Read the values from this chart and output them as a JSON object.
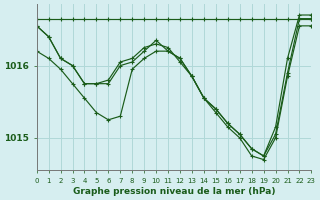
{
  "bg_color": "#d6eef0",
  "grid_color": "#b0d8d8",
  "line_color": "#1a5c1a",
  "xlabel": "Graphe pression niveau de la mer (hPa)",
  "ylim": [
    1014.55,
    1016.85
  ],
  "xlim": [
    0,
    23
  ],
  "yticks": [
    1015,
    1016
  ],
  "xticks": [
    0,
    1,
    2,
    3,
    4,
    5,
    6,
    7,
    8,
    9,
    10,
    11,
    12,
    13,
    14,
    15,
    16,
    17,
    18,
    19,
    20,
    21,
    22,
    23
  ],
  "series": [
    [
      1016.65,
      1016.65,
      1016.65,
      1016.65,
      1016.65,
      1016.65,
      1016.65,
      1016.65,
      1016.65,
      1016.65,
      1016.65,
      1016.65,
      1016.65,
      1016.65,
      1016.65,
      1016.65,
      1016.65,
      1016.65,
      1016.65,
      1016.65,
      1016.65,
      1016.65,
      1016.65,
      1016.65
    ],
    [
      1016.55,
      1016.4,
      1016.1,
      1016.0,
      1015.75,
      1015.75,
      1015.8,
      1016.05,
      1016.1,
      1016.25,
      1016.3,
      1016.25,
      1016.05,
      1015.85,
      1015.55,
      1015.4,
      1015.2,
      1015.05,
      1014.85,
      1014.75,
      1015.15,
      1016.1,
      1016.7,
      1016.7
    ],
    [
      1016.55,
      1016.4,
      1016.1,
      1016.0,
      1015.75,
      1015.75,
      1015.75,
      1016.0,
      1016.05,
      1016.2,
      1016.35,
      1016.2,
      1016.1,
      1015.85,
      1015.55,
      1015.4,
      1015.2,
      1015.05,
      1014.85,
      1014.75,
      1015.05,
      1015.9,
      1016.65,
      1016.65
    ],
    [
      1016.2,
      1016.1,
      1015.95,
      1015.75,
      1015.55,
      1015.35,
      1015.25,
      1015.3,
      1015.95,
      1016.1,
      1016.2,
      1016.2,
      1016.1,
      1015.85,
      1015.55,
      1015.35,
      1015.15,
      1015.0,
      1014.75,
      1014.7,
      1015.0,
      1015.85,
      1016.55,
      1016.55
    ]
  ]
}
